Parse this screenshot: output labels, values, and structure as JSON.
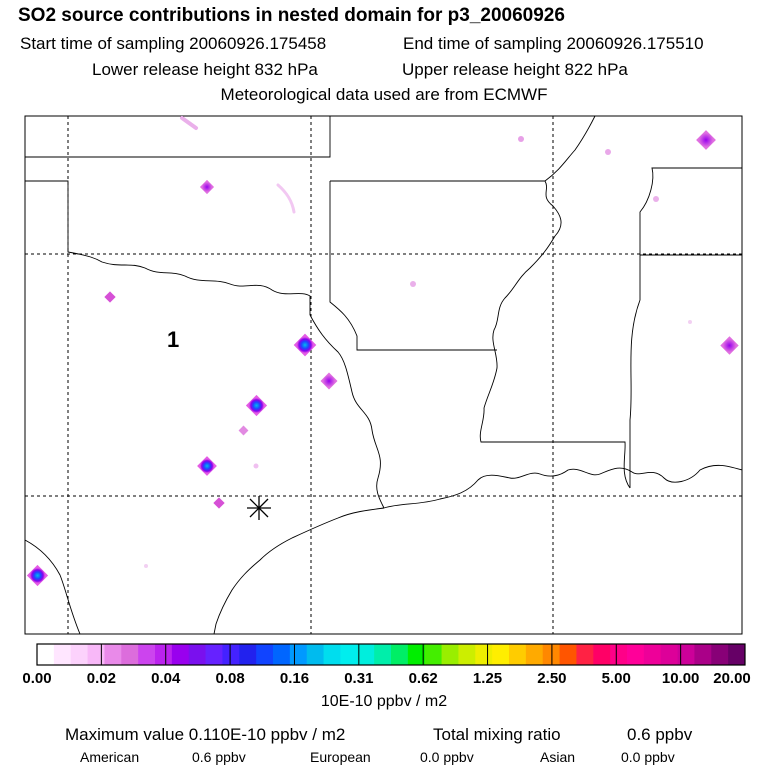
{
  "title": "SO2 source contributions in nested domain for p3_20060926",
  "start_time": "Start time of sampling 20060926.175458",
  "end_time": "End time of sampling 20060926.175510",
  "lower_release": "Lower release height  832 hPa",
  "upper_release": "Upper release height  822 hPa",
  "met_data": "Meteorological data used are from ECMWF",
  "map": {
    "source_label": "1",
    "colors": {
      "border": "#000000",
      "dashed_grid": "#000000"
    }
  },
  "colorbar": {
    "labels": [
      "0.00",
      "0.02",
      "0.04",
      "0.08",
      "0.16",
      "0.31",
      "0.62",
      "1.25",
      "2.50",
      "5.00",
      "10.00",
      "20.00"
    ],
    "colors": [
      "#ffffff",
      "#ffe6ff",
      "#fcd2fc",
      "#f8b8f8",
      "#e98ae9",
      "#dc6ddc",
      "#cc44ee",
      "#bb22ee",
      "#9900ee",
      "#7a10ee",
      "#6622ff",
      "#4422ff",
      "#2222ee",
      "#1144ff",
      "#0066ff",
      "#0099ff",
      "#00bbee",
      "#00ddee",
      "#00eeee",
      "#00eedd",
      "#00eeaa",
      "#00ee66",
      "#00ee00",
      "#44ee00",
      "#99ee00",
      "#ccee00",
      "#eeee00",
      "#ffee00",
      "#ffcc00",
      "#ffaa00",
      "#ff8800",
      "#ff5500",
      "#ff2244",
      "#ff0066",
      "#ff0088",
      "#ff0099",
      "#ee0099",
      "#dd0099",
      "#cc0099",
      "#aa0088",
      "#880077",
      "#660066"
    ],
    "units": "10E-10 ppbv / m2"
  },
  "footer": {
    "max_value": "Maximum value  0.110E-10 ppbv / m2",
    "total_label": "Total mixing ratio",
    "total_value": "0.6 ppbv",
    "regions": [
      {
        "name": "American",
        "value": "0.6 ppbv"
      },
      {
        "name": "European",
        "value": "0.0 ppbv"
      },
      {
        "name": "Asian",
        "value": "0.0 ppbv"
      }
    ]
  }
}
